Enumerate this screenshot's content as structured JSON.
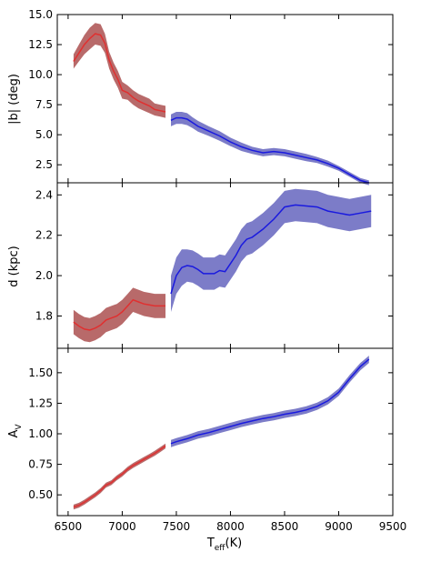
{
  "chart_data": [
    {
      "type": "line",
      "ylabel": "|b| (deg)",
      "xlim": [
        6400,
        9500
      ],
      "ylim": [
        1.0,
        15.0
      ],
      "yticks": [
        2.5,
        5.0,
        7.5,
        10.0,
        12.5,
        15.0
      ],
      "ytick_labels": [
        "2.5",
        "5.0",
        "7.5",
        "10.0",
        "12.5",
        "15.0"
      ],
      "series": [
        {
          "color": "#e03030",
          "band_color": "#b05a5a",
          "x": [
            6550,
            6600,
            6650,
            6700,
            6750,
            6800,
            6840,
            6880,
            6920,
            6960,
            7000,
            7050,
            7100,
            7150,
            7200,
            7250,
            7300,
            7350,
            7400
          ],
          "y": [
            11.1,
            11.8,
            12.5,
            13.0,
            13.4,
            13.3,
            12.6,
            11.2,
            10.3,
            9.6,
            8.7,
            8.5,
            8.1,
            7.8,
            7.6,
            7.4,
            7.1,
            7.0,
            6.9
          ],
          "err": [
            0.6,
            0.7,
            0.8,
            0.9,
            0.9,
            0.9,
            0.8,
            0.7,
            0.7,
            0.7,
            0.7,
            0.6,
            0.6,
            0.6,
            0.6,
            0.6,
            0.5,
            0.5,
            0.5
          ]
        },
        {
          "color": "#1a1adf",
          "band_color": "#6e6ec2",
          "x": [
            7450,
            7500,
            7550,
            7600,
            7650,
            7700,
            7800,
            7900,
            8000,
            8100,
            8200,
            8300,
            8400,
            8500,
            8600,
            8700,
            8800,
            8900,
            9000,
            9100,
            9200,
            9280
          ],
          "y": [
            6.2,
            6.4,
            6.4,
            6.3,
            6.0,
            5.7,
            5.3,
            4.9,
            4.4,
            4.0,
            3.7,
            3.5,
            3.6,
            3.5,
            3.3,
            3.1,
            2.9,
            2.6,
            2.2,
            1.7,
            1.2,
            1.0
          ],
          "err": [
            0.5,
            0.5,
            0.5,
            0.5,
            0.45,
            0.45,
            0.4,
            0.4,
            0.35,
            0.35,
            0.3,
            0.3,
            0.3,
            0.3,
            0.3,
            0.3,
            0.25,
            0.25,
            0.2,
            0.2,
            0.2,
            0.2
          ]
        }
      ]
    },
    {
      "type": "line",
      "ylabel": "d (kpc)",
      "xlim": [
        6400,
        9500
      ],
      "ylim": [
        1.64,
        2.46
      ],
      "yticks": [
        1.8,
        2.0,
        2.2,
        2.4
      ],
      "ytick_labels": [
        "1.8",
        "2.0",
        "2.2",
        "2.4"
      ],
      "series": [
        {
          "color": "#e03030",
          "band_color": "#b05a5a",
          "x": [
            6550,
            6600,
            6650,
            6700,
            6750,
            6800,
            6850,
            6900,
            6950,
            7000,
            7050,
            7100,
            7150,
            7200,
            7250,
            7300,
            7350,
            7400
          ],
          "y": [
            1.77,
            1.75,
            1.735,
            1.73,
            1.74,
            1.755,
            1.78,
            1.79,
            1.8,
            1.82,
            1.85,
            1.88,
            1.87,
            1.86,
            1.855,
            1.85,
            1.85,
            1.85
          ],
          "err": [
            0.06,
            0.06,
            0.06,
            0.06,
            0.06,
            0.06,
            0.06,
            0.06,
            0.06,
            0.06,
            0.06,
            0.06,
            0.06,
            0.06,
            0.06,
            0.06,
            0.06,
            0.06
          ]
        },
        {
          "color": "#1a1adf",
          "band_color": "#6e6ec2",
          "x": [
            7450,
            7500,
            7550,
            7600,
            7650,
            7700,
            7750,
            7800,
            7850,
            7900,
            7950,
            8000,
            8050,
            8100,
            8150,
            8200,
            8250,
            8300,
            8400,
            8500,
            8600,
            8700,
            8800,
            8900,
            9000,
            9100,
            9200,
            9300
          ],
          "y": [
            1.91,
            2.0,
            2.04,
            2.05,
            2.045,
            2.03,
            2.01,
            2.01,
            2.01,
            2.025,
            2.02,
            2.06,
            2.1,
            2.15,
            2.18,
            2.19,
            2.21,
            2.23,
            2.28,
            2.34,
            2.35,
            2.345,
            2.34,
            2.32,
            2.31,
            2.3,
            2.31,
            2.32
          ],
          "err": [
            0.09,
            0.09,
            0.09,
            0.08,
            0.08,
            0.08,
            0.08,
            0.08,
            0.08,
            0.08,
            0.08,
            0.08,
            0.08,
            0.08,
            0.08,
            0.08,
            0.08,
            0.08,
            0.08,
            0.08,
            0.08,
            0.08,
            0.08,
            0.08,
            0.08,
            0.08,
            0.08,
            0.08
          ]
        }
      ]
    },
    {
      "type": "line",
      "ylabel": "A_V",
      "xlabel": "T_eff(K)",
      "xlim": [
        6400,
        9500
      ],
      "ylim": [
        0.33,
        1.7
      ],
      "yticks": [
        0.5,
        0.75,
        1.0,
        1.25,
        1.5
      ],
      "ytick_labels": [
        "0.50",
        "0.75",
        "1.00",
        "1.25",
        "1.50"
      ],
      "xticks": [
        6500,
        7000,
        7500,
        8000,
        8500,
        9000,
        9500
      ],
      "xtick_labels": [
        "6500",
        "7000",
        "7500",
        "8000",
        "8500",
        "9000",
        "9500"
      ],
      "series": [
        {
          "color": "#e03030",
          "band_color": "#b05a5a",
          "x": [
            6550,
            6600,
            6650,
            6700,
            6750,
            6800,
            6850,
            6900,
            6950,
            7000,
            7050,
            7100,
            7150,
            7200,
            7250,
            7300,
            7350,
            7400
          ],
          "y": [
            0.4,
            0.415,
            0.44,
            0.47,
            0.5,
            0.535,
            0.58,
            0.6,
            0.64,
            0.67,
            0.71,
            0.74,
            0.765,
            0.79,
            0.815,
            0.84,
            0.87,
            0.9
          ],
          "err": [
            0.02,
            0.02,
            0.02,
            0.02,
            0.02,
            0.02,
            0.02,
            0.02,
            0.02,
            0.02,
            0.02,
            0.02,
            0.02,
            0.02,
            0.02,
            0.02,
            0.02,
            0.02
          ]
        },
        {
          "color": "#1a1adf",
          "band_color": "#6e6ec2",
          "x": [
            7450,
            7500,
            7600,
            7700,
            7800,
            7900,
            8000,
            8100,
            8200,
            8300,
            8400,
            8500,
            8600,
            8700,
            8800,
            8900,
            9000,
            9100,
            9200,
            9280
          ],
          "y": [
            0.92,
            0.935,
            0.96,
            0.99,
            1.01,
            1.035,
            1.06,
            1.085,
            1.105,
            1.125,
            1.14,
            1.16,
            1.175,
            1.195,
            1.225,
            1.27,
            1.34,
            1.45,
            1.55,
            1.61
          ],
          "err": [
            0.03,
            0.03,
            0.03,
            0.03,
            0.03,
            0.03,
            0.03,
            0.03,
            0.03,
            0.03,
            0.03,
            0.03,
            0.03,
            0.03,
            0.03,
            0.03,
            0.03,
            0.03,
            0.03,
            0.03
          ]
        }
      ]
    }
  ],
  "labels": {
    "panel1_ylabel": "|b| (deg)",
    "panel2_ylabel": "d (kpc)",
    "panel3_ylabel_main": "A",
    "panel3_ylabel_sub": "V",
    "xlabel_main": "T",
    "xlabel_sub": "eff",
    "xlabel_tail": "(K)"
  }
}
